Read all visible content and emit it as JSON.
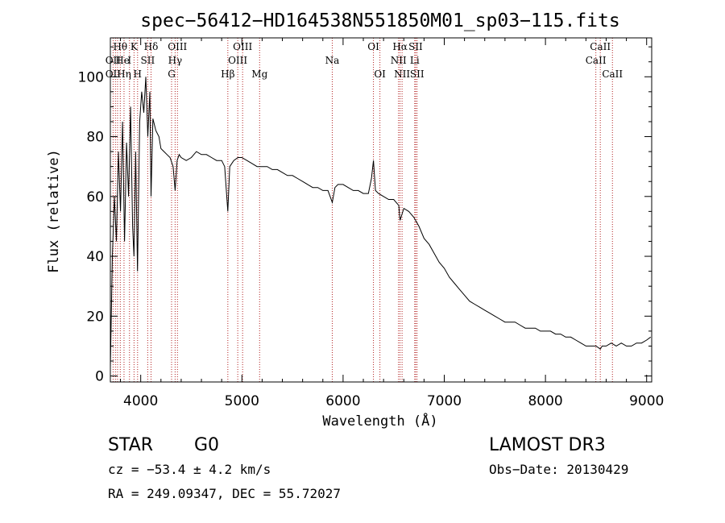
{
  "chart_data": {
    "type": "line",
    "title": "spec−56412−HD164538N551850M01_sp03−115.fits",
    "xlabel": "Wavelength (Å)",
    "ylabel": "Flux (relative)",
    "xlim": [
      3700,
      9050
    ],
    "ylim": [
      -2,
      113
    ],
    "x_ticks": [
      4000,
      5000,
      6000,
      7000,
      8000,
      9000
    ],
    "y_ticks": [
      0,
      20,
      40,
      60,
      80,
      100
    ],
    "series": [
      {
        "name": "spectrum",
        "x": [
          3700,
          3720,
          3740,
          3760,
          3780,
          3800,
          3820,
          3840,
          3860,
          3880,
          3900,
          3920,
          3933,
          3950,
          3968,
          3990,
          4010,
          4030,
          4050,
          4070,
          4090,
          4102,
          4120,
          4150,
          4180,
          4200,
          4230,
          4260,
          4290,
          4320,
          4340,
          4360,
          4380,
          4400,
          4450,
          4500,
          4550,
          4600,
          4650,
          4700,
          4750,
          4800,
          4830,
          4861,
          4880,
          4920,
          4960,
          5000,
          5050,
          5100,
          5150,
          5200,
          5250,
          5300,
          5350,
          5400,
          5450,
          5500,
          5550,
          5600,
          5650,
          5700,
          5750,
          5800,
          5850,
          5893,
          5920,
          5950,
          6000,
          6050,
          6100,
          6150,
          6200,
          6250,
          6280,
          6300,
          6320,
          6350,
          6400,
          6450,
          6500,
          6550,
          6563,
          6600,
          6650,
          6700,
          6750,
          6800,
          6850,
          6900,
          6950,
          7000,
          7050,
          7100,
          7150,
          7200,
          7250,
          7300,
          7350,
          7400,
          7450,
          7500,
          7550,
          7600,
          7650,
          7700,
          7750,
          7800,
          7850,
          7900,
          7950,
          8000,
          8050,
          8100,
          8150,
          8200,
          8250,
          8300,
          8350,
          8400,
          8450,
          8500,
          8542,
          8560,
          8600,
          8650,
          8700,
          8750,
          8800,
          8850,
          8900,
          8950,
          9000,
          9040
        ],
        "y": [
          3,
          40,
          60,
          45,
          75,
          55,
          85,
          45,
          78,
          60,
          90,
          50,
          40,
          75,
          35,
          85,
          95,
          88,
          100,
          80,
          95,
          60,
          86,
          82,
          80,
          76,
          75,
          74,
          73,
          70,
          62,
          72,
          74,
          73,
          72,
          73,
          75,
          74,
          74,
          73,
          72,
          72,
          70,
          55,
          70,
          72,
          73,
          73,
          72,
          71,
          70,
          70,
          70,
          69,
          69,
          68,
          67,
          67,
          66,
          65,
          64,
          63,
          63,
          62,
          62,
          58,
          63,
          64,
          64,
          63,
          62,
          62,
          61,
          61,
          66,
          72,
          62,
          61,
          60,
          59,
          59,
          57,
          52,
          56,
          55,
          53,
          50,
          46,
          44,
          41,
          38,
          36,
          33,
          31,
          29,
          27,
          25,
          24,
          23,
          22,
          21,
          20,
          19,
          18,
          18,
          18,
          17,
          16,
          16,
          16,
          15,
          15,
          15,
          14,
          14,
          13,
          13,
          12,
          11,
          10,
          10,
          10,
          9,
          10,
          10,
          11,
          10,
          11,
          10,
          10,
          11,
          11,
          12,
          13
        ]
      }
    ],
    "line_labels": [
      {
        "label": "Hθ",
        "x": 3798,
        "row": 1
      },
      {
        "label": "OII",
        "x": 3727,
        "row": 2
      },
      {
        "label": "OII",
        "x": 3727,
        "row": 3
      },
      {
        "label": "He",
        "x": 3820,
        "row": 2
      },
      {
        "label": "Hη",
        "x": 3835,
        "row": 3
      },
      {
        "label": "K",
        "x": 3934,
        "row": 1
      },
      {
        "label": "I",
        "x": 3889,
        "row": 2
      },
      {
        "label": "H",
        "x": 3969,
        "row": 3
      },
      {
        "label": "SII",
        "x": 4069,
        "row": 2
      },
      {
        "label": "Hδ",
        "x": 4102,
        "row": 1
      },
      {
        "label": "OIII",
        "x": 4363,
        "row": 1
      },
      {
        "label": "Hγ",
        "x": 4340,
        "row": 2
      },
      {
        "label": "G",
        "x": 4305,
        "row": 3
      },
      {
        "label": "Hβ",
        "x": 4861,
        "row": 3
      },
      {
        "label": "OIII",
        "x": 5007,
        "row": 1
      },
      {
        "label": "OIII",
        "x": 4959,
        "row": 2
      },
      {
        "label": "Mg",
        "x": 5175,
        "row": 3
      },
      {
        "label": "Na",
        "x": 5893,
        "row": 2
      },
      {
        "label": "OI",
        "x": 6300,
        "row": 1
      },
      {
        "label": "OI",
        "x": 6364,
        "row": 3
      },
      {
        "label": "Hα",
        "x": 6563,
        "row": 1
      },
      {
        "label": "NII",
        "x": 6548,
        "row": 2
      },
      {
        "label": "NII",
        "x": 6583,
        "row": 3
      },
      {
        "label": "SII",
        "x": 6717,
        "row": 1
      },
      {
        "label": "Li",
        "x": 6708,
        "row": 2
      },
      {
        "label": "SII",
        "x": 6731,
        "row": 3
      },
      {
        "label": "CaII",
        "x": 8542,
        "row": 1
      },
      {
        "label": "CaII",
        "x": 8498,
        "row": 2
      },
      {
        "label": "CaII",
        "x": 8662,
        "row": 3
      }
    ],
    "line_markers": [
      3727,
      3750,
      3771,
      3798,
      3835,
      3889,
      3934,
      3969,
      4069,
      4102,
      4305,
      4340,
      4363,
      4861,
      4959,
      5007,
      5175,
      5893,
      6300,
      6364,
      6548,
      6563,
      6583,
      6708,
      6717,
      6731,
      8498,
      8542,
      8662
    ]
  },
  "info": {
    "class": "STAR",
    "subclass": "G0",
    "survey": "LAMOST DR3",
    "cz": "cz = −53.4 ± 4.2 km/s",
    "obs_date": "Obs−Date: 20130429",
    "radec": "RA = 249.09347, DEC =  55.72027"
  }
}
